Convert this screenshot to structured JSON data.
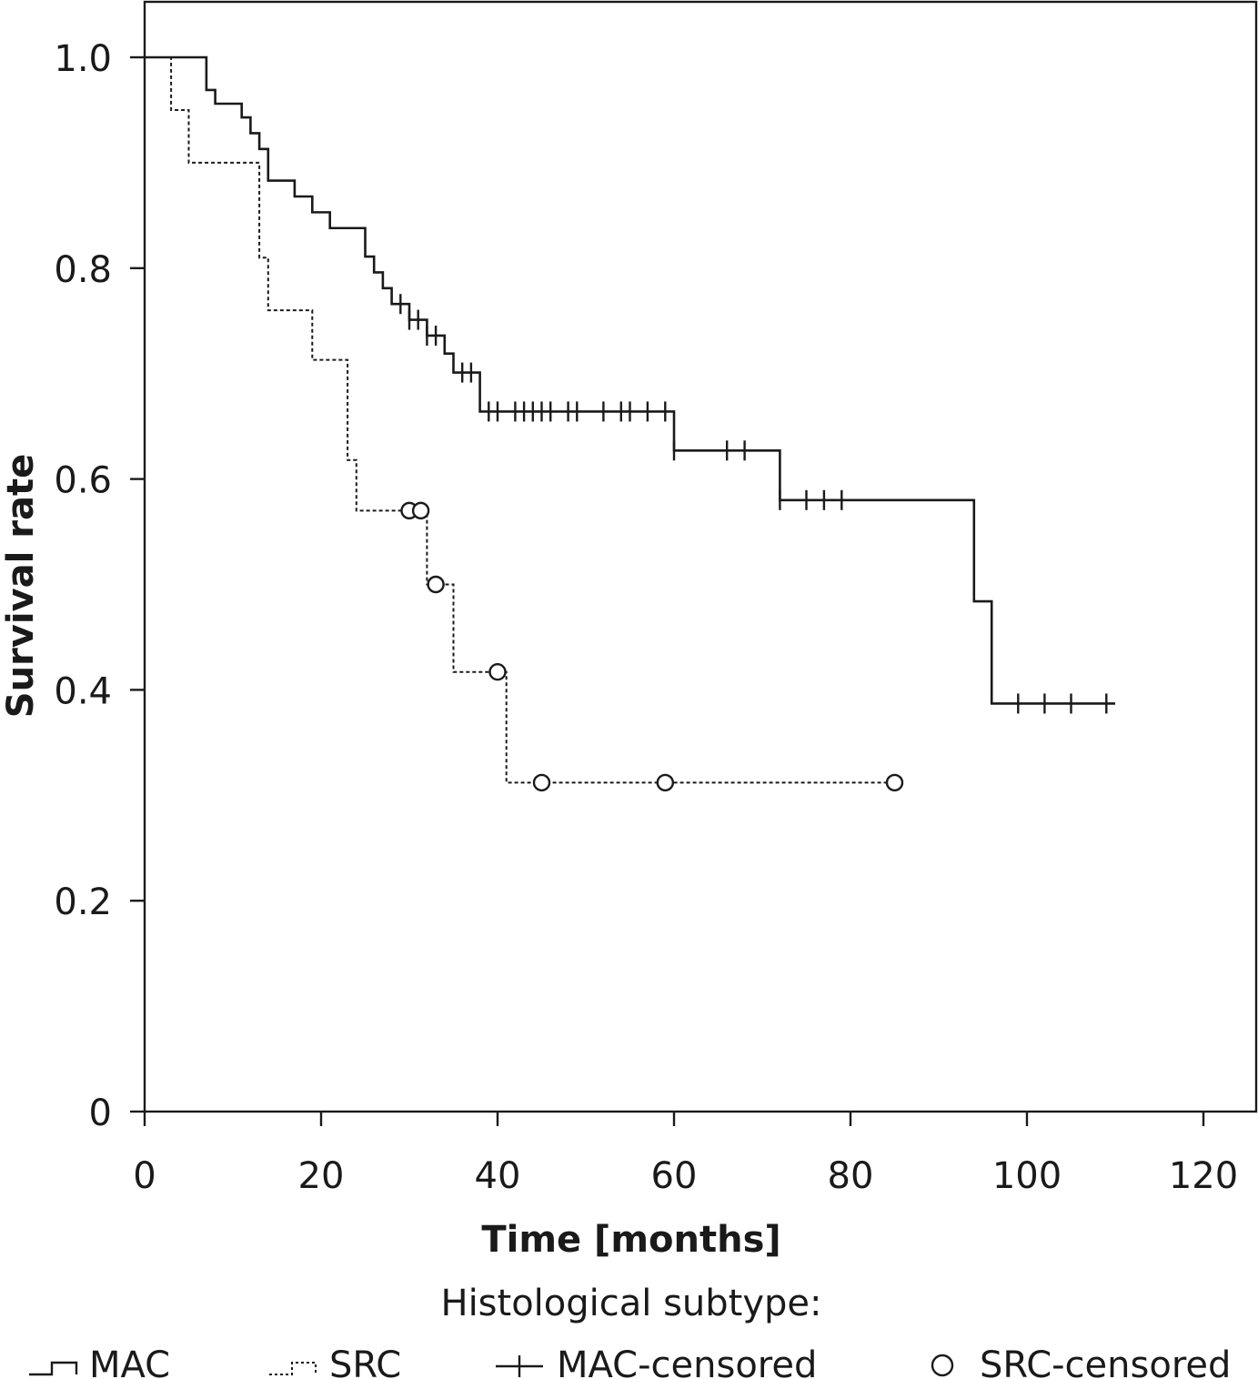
{
  "chart_data": {
    "type": "line",
    "title": "",
    "xlabel": "Time [months]",
    "ylabel": "Survival rate",
    "xlim": [
      0,
      120
    ],
    "ylim": [
      0,
      1.0
    ],
    "x_ticks": [
      0,
      20,
      40,
      60,
      80,
      100,
      120
    ],
    "y_ticks": [
      0,
      0.2,
      0.4,
      0.6,
      0.8,
      1.0
    ],
    "x_tick_labels": [
      "0",
      "20",
      "40",
      "60",
      "80",
      "100",
      "120"
    ],
    "y_tick_labels": [
      "0",
      "0.2",
      "0.4",
      "0.6",
      "0.8",
      "1.0"
    ],
    "grid": false,
    "legend_title": "Histological subtype:",
    "legend_position": "bottom",
    "legend": [
      "MAC",
      "SRC",
      "MAC-censored",
      "SRC-censored"
    ],
    "series": [
      {
        "name": "MAC",
        "style": "solid",
        "steps": [
          [
            0,
            1.0
          ],
          [
            7,
            0.969
          ],
          [
            8,
            0.956
          ],
          [
            11,
            0.943
          ],
          [
            12,
            0.928
          ],
          [
            13,
            0.913
          ],
          [
            14,
            0.883
          ],
          [
            17,
            0.868
          ],
          [
            19,
            0.853
          ],
          [
            21,
            0.838
          ],
          [
            25,
            0.811
          ],
          [
            26,
            0.796
          ],
          [
            27,
            0.781
          ],
          [
            28,
            0.766
          ],
          [
            30,
            0.751
          ],
          [
            32,
            0.736
          ],
          [
            34,
            0.719
          ],
          [
            35,
            0.701
          ],
          [
            38,
            0.664
          ],
          [
            60,
            0.627
          ],
          [
            72,
            0.58
          ],
          [
            94,
            0.484
          ],
          [
            96,
            0.387
          ]
        ],
        "end": 110,
        "censored": [
          29,
          30,
          31,
          32,
          33,
          36,
          37,
          39,
          40,
          42,
          43,
          44,
          45,
          46,
          48,
          49,
          52,
          54,
          55,
          57,
          59,
          60,
          66,
          68,
          72,
          75,
          77,
          79,
          99,
          102,
          105,
          109
        ]
      },
      {
        "name": "SRC",
        "style": "dashed",
        "steps": [
          [
            0,
            1.0
          ],
          [
            3,
            0.95
          ],
          [
            5,
            0.9
          ],
          [
            13,
            0.81
          ],
          [
            14,
            0.76
          ],
          [
            19,
            0.713
          ],
          [
            23,
            0.618
          ],
          [
            24,
            0.57
          ],
          [
            32,
            0.5
          ],
          [
            35,
            0.417
          ],
          [
            41,
            0.312
          ]
        ],
        "end": 85,
        "censored": [
          30,
          31.3,
          33,
          40,
          45,
          59,
          85
        ]
      }
    ]
  },
  "legend_items": {
    "mac": "MAC",
    "src": "SRC",
    "mac_censored": "MAC-censored",
    "src_censored": "SRC-censored"
  }
}
